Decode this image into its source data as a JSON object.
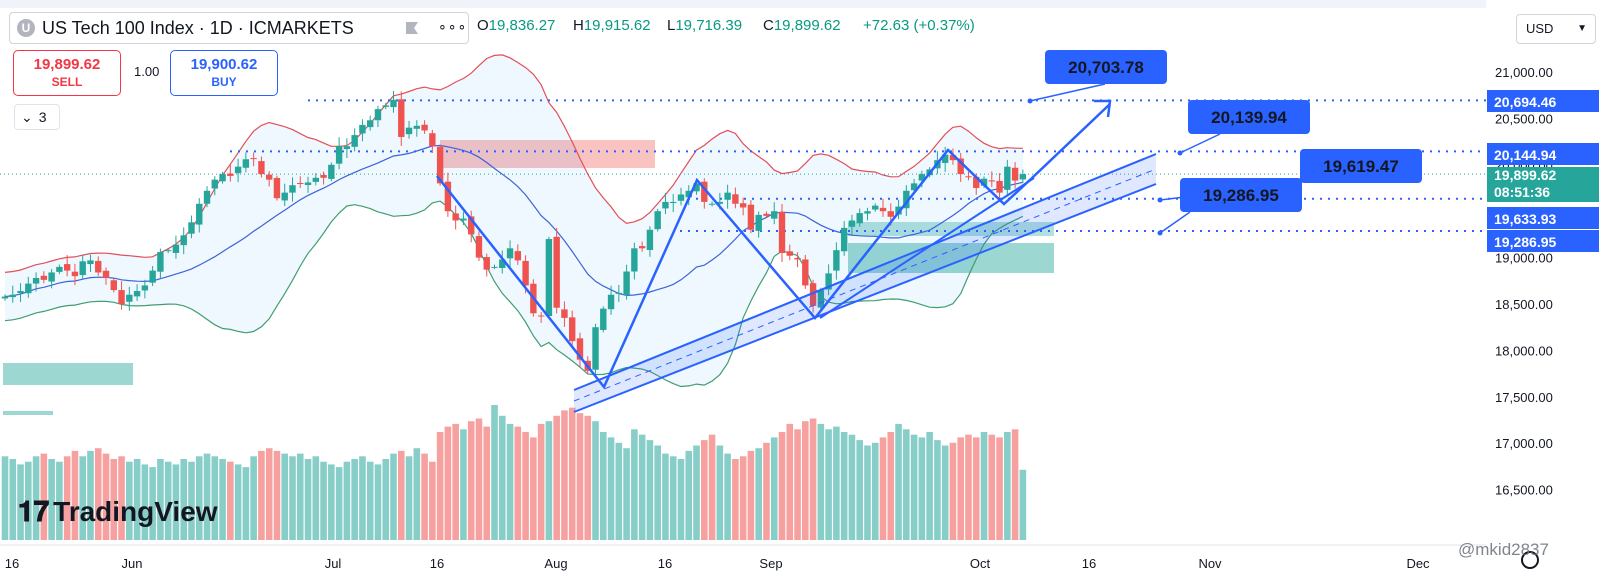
{
  "header": {
    "logo_letter": "U",
    "title": "US Tech 100 Index · 1D · ICMARKETS",
    "more": "∘∘∘",
    "ohlc": [
      {
        "key": "O",
        "value": "19,836.27"
      },
      {
        "key": "H",
        "value": "19,915.62"
      },
      {
        "key": "L",
        "value": "19,716.39"
      },
      {
        "key": "C",
        "value": "19,899.62"
      },
      {
        "key": "",
        "value": "+72.63 (+0.37%)"
      }
    ]
  },
  "trade": {
    "sell_price": "19,899.62",
    "sell_label": "SELL",
    "spread": "1.00",
    "buy_price": "19,900.62",
    "buy_label": "BUY"
  },
  "indicators_toggle": {
    "count": "3"
  },
  "currency": {
    "label": "USD"
  },
  "branding": {
    "logo_text": "TradingView",
    "watermark": "@mkid2837"
  },
  "colors": {
    "up": "#26a69a",
    "down": "#ef5350",
    "annotation": "#2962ff",
    "bollinger_upper": "#e34f58",
    "bollinger_lower": "#3f9e6f",
    "bollinger_basis": "#3b64d8"
  },
  "chart_data": {
    "type": "candlestick",
    "title": "US Tech 100 Index · 1D · ICMARKETS",
    "x_ticks": [
      "16",
      "Jun",
      "Jul",
      "16",
      "Aug",
      "16",
      "Sep",
      "Oct",
      "16",
      "Nov",
      "Dec"
    ],
    "y_ticks": [
      "21,000.00",
      "20,500.00",
      "20,000.00",
      "19,500.00",
      "19,000.00",
      "18,500.00",
      "18,000.00",
      "17,500.00",
      "17,000.00",
      "16,500.00"
    ],
    "ylim": [
      16000,
      21400
    ],
    "price_labels": [
      {
        "value": "20,694.46",
        "style": "blue"
      },
      {
        "value": "20,144.94",
        "style": "blue"
      },
      {
        "value": "19,899.62",
        "style": "green"
      },
      {
        "value": "08:51:36",
        "style": "green"
      },
      {
        "value": "19,633.93",
        "style": "blue"
      },
      {
        "value": "19,286.95",
        "style": "blue"
      }
    ],
    "annotations": [
      "20,703.78",
      "20,139.94",
      "19,619.47",
      "19,286.95"
    ],
    "levels": [
      20694.46,
      20144.94,
      19633.93,
      19286.95
    ],
    "closes": [
      18580,
      18600,
      18640,
      18720,
      18780,
      18760,
      18840,
      18900,
      18860,
      18800,
      18960,
      18970,
      18840,
      18780,
      18650,
      18500,
      18600,
      18640,
      18700,
      18860,
      19060,
      19080,
      19140,
      19240,
      19380,
      19580,
      19720,
      19840,
      19900,
      19880,
      19980,
      20060,
      20070,
      19900,
      19840,
      19640,
      19700,
      19780,
      19800,
      19810,
      19860,
      19860,
      20000,
      20200,
      20200,
      20320,
      20430,
      20480,
      20600,
      20640,
      20700,
      20300,
      20400,
      20420,
      20370,
      20200,
      19800,
      19500,
      19400,
      19420,
      19250,
      19000,
      18870,
      18900,
      18980,
      19100,
      18970,
      18700,
      18400,
      18370,
      19200,
      18460,
      18350,
      18100,
      17900,
      17780,
      18250,
      18450,
      18600,
      18620,
      18850,
      19100,
      19100,
      19300,
      19500,
      19600,
      19600,
      19680,
      19720,
      19800,
      19600,
      19580,
      19600,
      19700,
      19580,
      19540,
      19300,
      19460,
      19450,
      19500,
      19050,
      19020,
      18980,
      18700,
      18480,
      18650,
      18830,
      19080,
      19320,
      19400,
      19480,
      19500,
      19560,
      19500,
      19440,
      19550,
      19720,
      19800,
      19900,
      19950,
      20050,
      20110,
      20050,
      19900,
      19870,
      19750,
      19850,
      19820,
      19700,
      19980,
      19830,
      19899.62
    ],
    "volumes": [
      0.62,
      0.6,
      0.56,
      0.58,
      0.62,
      0.64,
      0.6,
      0.58,
      0.62,
      0.66,
      0.62,
      0.66,
      0.68,
      0.64,
      0.6,
      0.62,
      0.58,
      0.6,
      0.56,
      0.54,
      0.6,
      0.58,
      0.56,
      0.6,
      0.58,
      0.62,
      0.64,
      0.62,
      0.6,
      0.58,
      0.56,
      0.54,
      0.62,
      0.66,
      0.68,
      0.66,
      0.64,
      0.62,
      0.64,
      0.6,
      0.62,
      0.58,
      0.56,
      0.54,
      0.58,
      0.6,
      0.62,
      0.58,
      0.56,
      0.6,
      0.64,
      0.66,
      0.62,
      0.68,
      0.64,
      0.58,
      0.8,
      0.84,
      0.86,
      0.82,
      0.88,
      0.9,
      0.84,
      1.0,
      0.92,
      0.86,
      0.84,
      0.8,
      0.76,
      0.86,
      0.88,
      0.92,
      0.96,
      0.98,
      0.94,
      0.92,
      0.88,
      0.8,
      0.76,
      0.72,
      0.68,
      0.82,
      0.78,
      0.74,
      0.7,
      0.64,
      0.62,
      0.6,
      0.66,
      0.7,
      0.74,
      0.78,
      0.7,
      0.64,
      0.6,
      0.62,
      0.66,
      0.68,
      0.72,
      0.76,
      0.8,
      0.86,
      0.82,
      0.88,
      0.9,
      0.86,
      0.82,
      0.84,
      0.8,
      0.78,
      0.74,
      0.7,
      0.72,
      0.76,
      0.8,
      0.86,
      0.82,
      0.78,
      0.76,
      0.8,
      0.74,
      0.7,
      0.72,
      0.76,
      0.78,
      0.76,
      0.8,
      0.78,
      0.76,
      0.8,
      0.82,
      0.52
    ]
  }
}
